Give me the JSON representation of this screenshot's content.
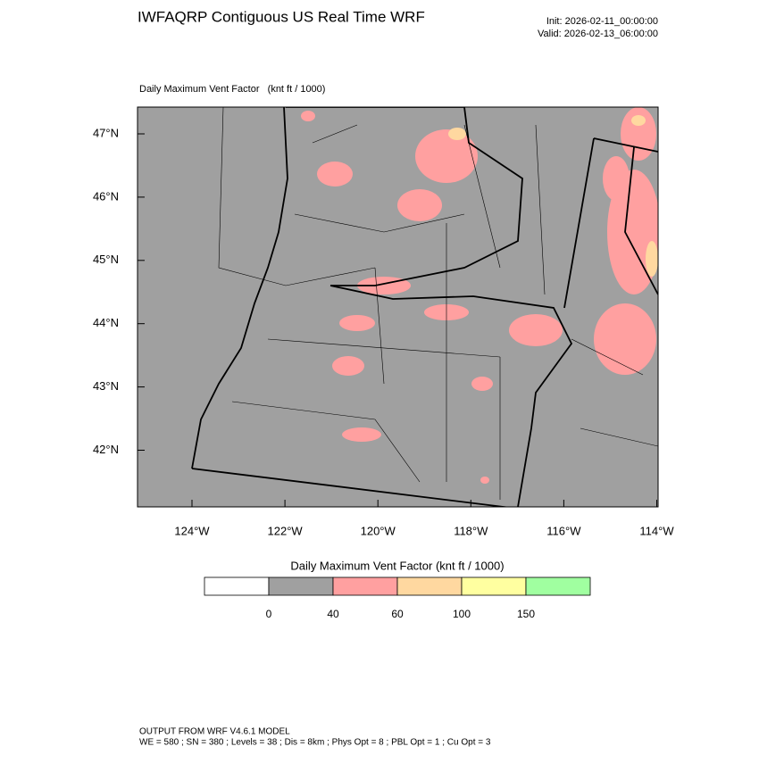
{
  "header": {
    "title": "IWFAQRP Contiguous US Real Time WRF",
    "init": "Init: 2026-02-11_00:00:00",
    "valid": "Valid: 2026-02-13_06:00:00"
  },
  "map": {
    "subtitle": "Daily Maximum Vent Factor   (knt ft / 1000)",
    "lat_ticks": [
      {
        "value": 47,
        "label": "47°N"
      },
      {
        "value": 46,
        "label": "46°N"
      },
      {
        "value": 45,
        "label": "45°N"
      },
      {
        "value": 44,
        "label": "44°N"
      },
      {
        "value": 43,
        "label": "43°N"
      },
      {
        "value": 42,
        "label": "42°N"
      }
    ],
    "lon_ticks": [
      {
        "value": -124,
        "label": "124°W"
      },
      {
        "value": -122,
        "label": "122°W"
      },
      {
        "value": -120,
        "label": "120°W"
      },
      {
        "value": -118,
        "label": "118°W"
      },
      {
        "value": -116,
        "label": "116°W"
      },
      {
        "value": -114,
        "label": "114°W"
      }
    ]
  },
  "colorbar": {
    "title": "Daily Maximum Vent Factor  (knt ft / 1000)",
    "levels": [
      0,
      40,
      60,
      100,
      150
    ],
    "colors": [
      "#ffffff",
      "#a0a0a0",
      "#ffa0a0",
      "#ffd8a0",
      "#ffffa0",
      "#a0ffa0"
    ]
  },
  "footer": {
    "line1": "OUTPUT FROM WRF V4.6.1 MODEL",
    "line2": "WE = 580 ; SN = 380 ; Levels = 38 ; Dis = 8km ; Phys Opt = 8 ; PBL Opt = 1 ; Cu Opt = 3"
  }
}
